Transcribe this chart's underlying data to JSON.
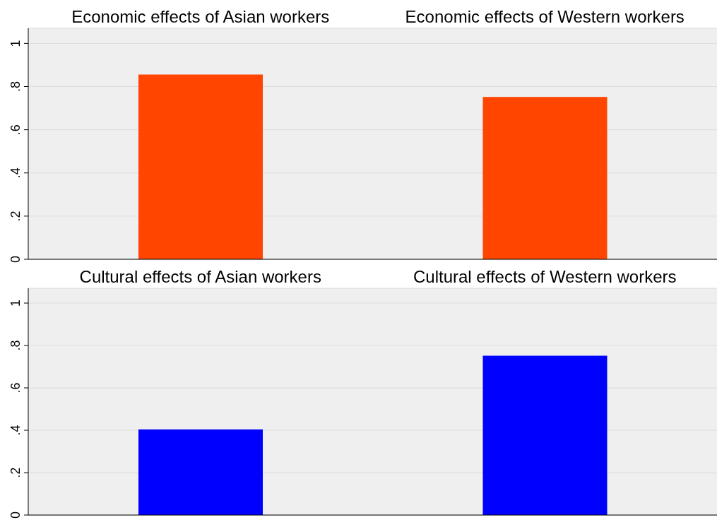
{
  "chart_data": [
    {
      "type": "bar",
      "categories": [
        "Economic effects of Asian workers",
        "Economic effects of Western workers"
      ],
      "values": [
        0.856,
        0.752
      ],
      "color": "#ff4500",
      "ylim": [
        0,
        1.07
      ],
      "yticks": [
        {
          "value": 0,
          "label": "0"
        },
        {
          "value": 0.2,
          "label": ".2"
        },
        {
          "value": 0.4,
          "label": ".4"
        },
        {
          "value": 0.6,
          "label": ".6"
        },
        {
          "value": 0.8,
          "label": ".8"
        },
        {
          "value": 1,
          "label": "1"
        }
      ],
      "grid": "y"
    },
    {
      "type": "bar",
      "categories": [
        "Cultural effects of Asian workers",
        "Cultural effects of Western workers"
      ],
      "values": [
        0.404,
        0.752
      ],
      "color": "#0000ff",
      "ylim": [
        0,
        1.07
      ],
      "yticks": [
        {
          "value": 0,
          "label": "0"
        },
        {
          "value": 0.2,
          "label": ".2"
        },
        {
          "value": 0.4,
          "label": ".4"
        },
        {
          "value": 0.6,
          "label": ".6"
        },
        {
          "value": 0.8,
          "label": ".8"
        },
        {
          "value": 1,
          "label": "1"
        }
      ],
      "grid": "y"
    }
  ]
}
